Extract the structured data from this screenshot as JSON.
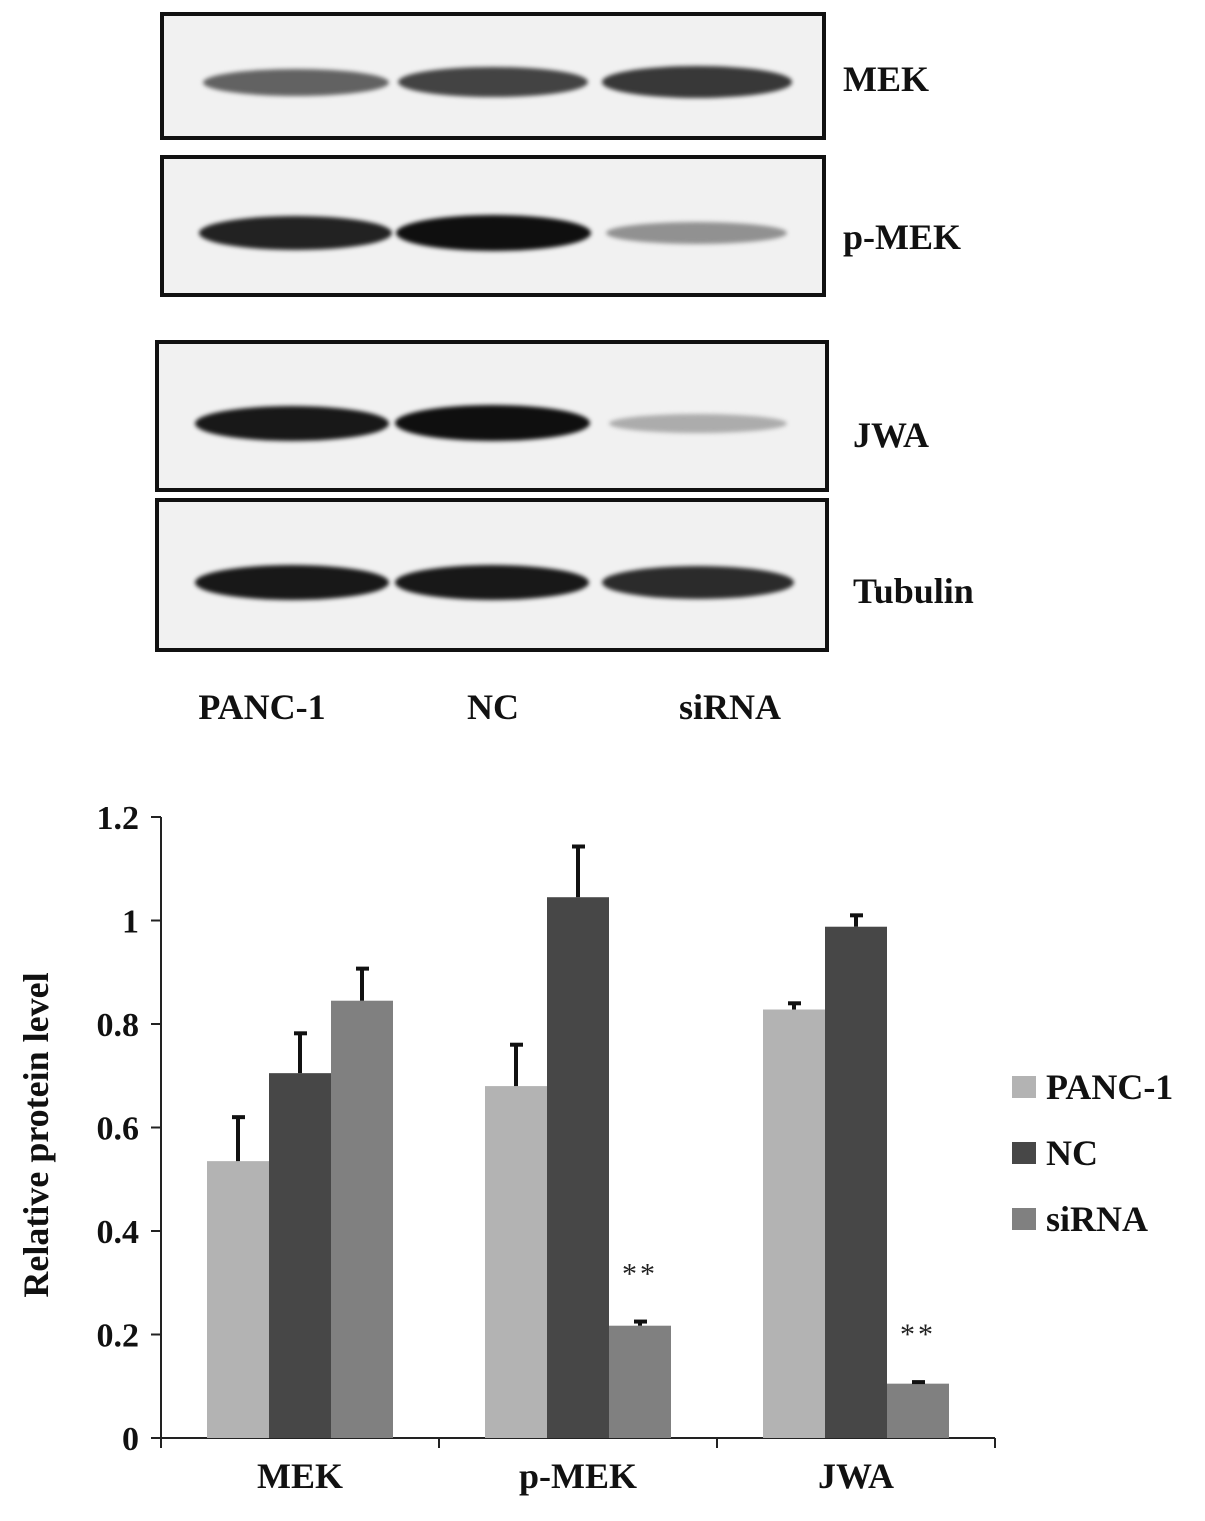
{
  "blots": [
    {
      "name": "MEK",
      "bands": [
        0.55,
        0.72,
        0.78
      ]
    },
    {
      "name": "p-MEK",
      "bands": [
        0.9,
        1.0,
        0.3
      ]
    },
    {
      "name": "JWA",
      "bands": [
        0.95,
        1.0,
        0.15
      ]
    },
    {
      "name": "Tubulin",
      "bands": [
        0.95,
        0.95,
        0.85
      ]
    }
  ],
  "lanes": [
    "PANC-1",
    "NC",
    "siRNA"
  ],
  "chart_data": {
    "type": "bar",
    "categories": [
      "MEK",
      "p-MEK",
      "JWA"
    ],
    "series": [
      {
        "name": "PANC-1",
        "color": "#b3b3b3",
        "values": [
          0.535,
          0.68,
          0.828
        ],
        "errors": [
          0.085,
          0.08,
          0.012
        ]
      },
      {
        "name": "NC",
        "color": "#474747",
        "values": [
          0.705,
          1.045,
          0.988
        ],
        "errors": [
          0.077,
          0.098,
          0.022
        ]
      },
      {
        "name": "siRNA",
        "color": "#808080",
        "values": [
          0.845,
          0.217,
          0.105
        ],
        "errors": [
          0.062,
          0.008,
          0.003
        ]
      }
    ],
    "annotations": [
      {
        "category": "p-MEK",
        "series": "siRNA",
        "text": "**"
      },
      {
        "category": "JWA",
        "series": "siRNA",
        "text": "**"
      }
    ],
    "ylabel": "Relative protein level",
    "ylim": [
      0,
      1.2
    ],
    "yticks": [
      "0",
      "0.2",
      "0.4",
      "0.6",
      "0.8",
      "1",
      "1.2"
    ],
    "legend_position": "right",
    "grid": false
  }
}
